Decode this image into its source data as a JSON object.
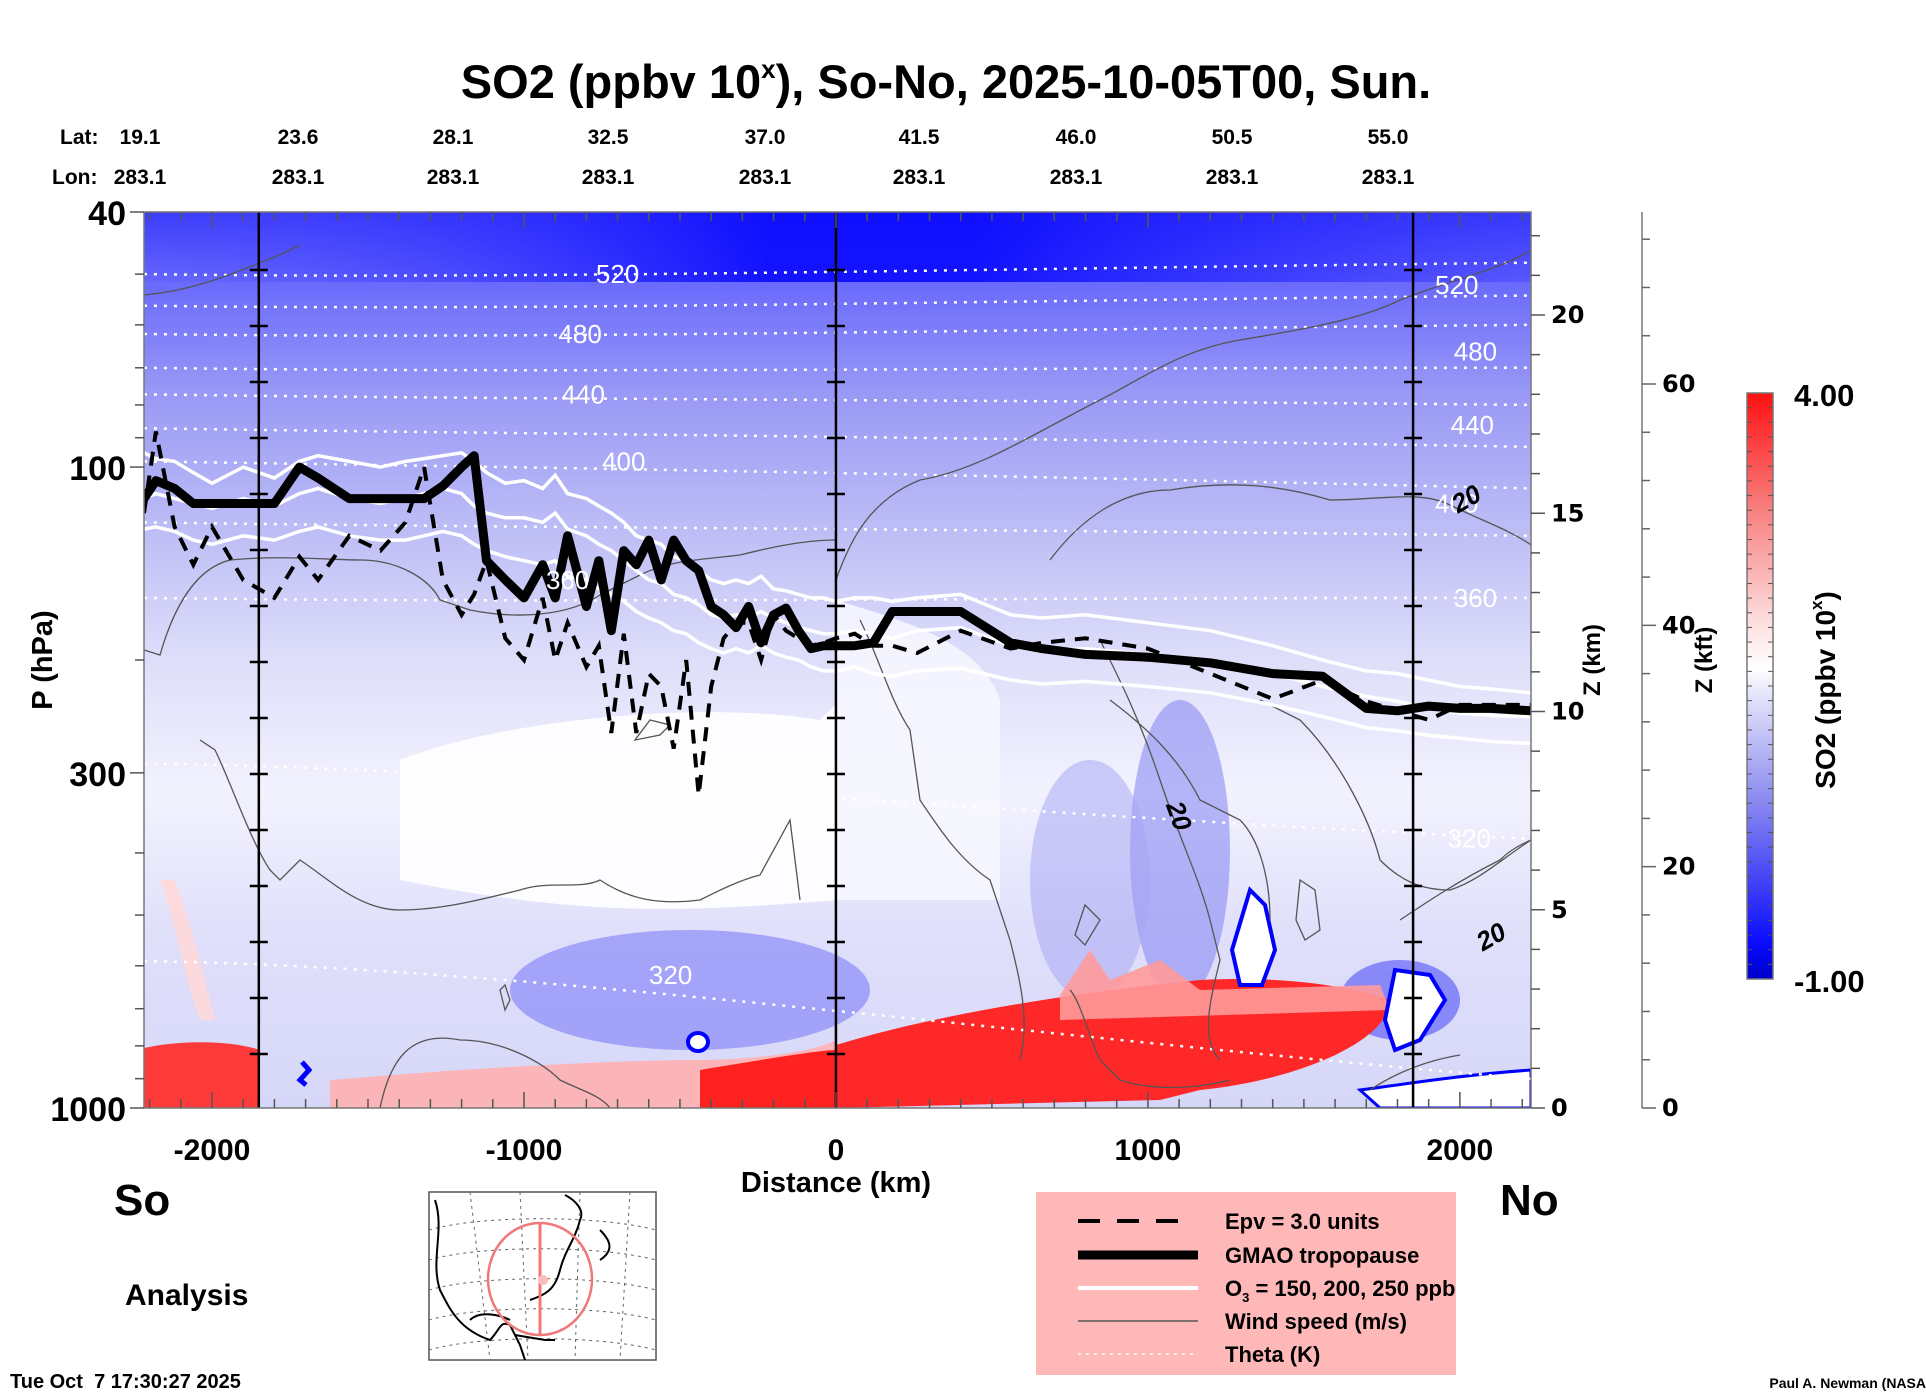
{
  "chart_data": {
    "type": "heatmap",
    "title": "SO2 (ppbv 10",
    "title_superscript": "x",
    "title_suffix": "), So-No, 2025-10-05T00, Sun.",
    "xlabel": "Distance (km)",
    "ylabel": "P (hPa)",
    "xlim": [
      -2218,
      2228
    ],
    "ylim": [
      1000,
      40
    ],
    "y_scale": "log",
    "x_ticks": [
      -2000,
      -1000,
      0,
      1000,
      2000
    ],
    "y_ticks": [
      40,
      100,
      300,
      1000
    ],
    "y_tick_labels": [
      "40",
      "100",
      "300",
      "1000"
    ],
    "right_axis_km": {
      "label": "Z (km)",
      "ticks": [
        0,
        5,
        10,
        15,
        20
      ]
    },
    "right_axis_kft": {
      "label": "Z (kft)",
      "ticks": [
        0,
        20,
        40,
        60
      ]
    },
    "grid": false,
    "lat_label": "Lat:",
    "lon_label": "Lon:",
    "lat_values": [
      "19.1",
      "23.6",
      "28.1",
      "32.5",
      "37.0",
      "41.5",
      "46.0",
      "50.5",
      "55.0"
    ],
    "lon_values": [
      "283.1",
      "283.1",
      "283.1",
      "283.1",
      "283.1",
      "283.1",
      "283.1",
      "283.1",
      "283.1"
    ],
    "lat_lon_distances": [
      -2218,
      -1718,
      -1218,
      -718,
      -218,
      282,
      782,
      1282,
      1782
    ],
    "reference_lines_km": [
      -1850,
      0,
      1850
    ],
    "colorbar": {
      "label": "SO2 (ppbv 10",
      "label_superscript": "x",
      "label_suffix": ")",
      "min": -1.0,
      "max": 4.0,
      "min_label": "-1.00",
      "max_label": "4.00",
      "white_value": 1.5,
      "low_color": "#0000cc",
      "mid_color": "#ffffff",
      "high_color": "#ff0000"
    },
    "theta_labels": [
      {
        "value": "520",
        "x": -700,
        "p": 50
      },
      {
        "value": "480",
        "x": -820,
        "p": 62
      },
      {
        "value": "440",
        "x": -810,
        "p": 77
      },
      {
        "value": "400",
        "x": -680,
        "p": 98
      },
      {
        "value": "360",
        "x": -860,
        "p": 150
      },
      {
        "value": "320",
        "x": -530,
        "p": 620
      },
      {
        "value": "520",
        "x": 1990,
        "p": 52
      },
      {
        "value": "480",
        "x": 2050,
        "p": 66
      },
      {
        "value": "440",
        "x": 2040,
        "p": 86
      },
      {
        "value": "400",
        "x": 1990,
        "p": 114
      },
      {
        "value": "360",
        "x": 2050,
        "p": 160
      },
      {
        "value": "320",
        "x": 2030,
        "p": 380
      }
    ],
    "theta_levels_p_left": [
      50,
      56,
      62,
      70,
      77,
      87,
      98,
      122,
      160,
      290,
      590
    ],
    "theta_levels_p_right": [
      48,
      54,
      60,
      70,
      80,
      93,
      108,
      128,
      160,
      380,
      900
    ],
    "wind_labels": [
      {
        "value": "20",
        "x": 2020,
        "p": 112
      },
      {
        "value": "20",
        "x": 1100,
        "p": 350
      },
      {
        "value": "20",
        "x": 2100,
        "p": 540
      }
    ],
    "tropopause_km": [
      -2218,
      -2180,
      -2120,
      -2060,
      -2000,
      -1900,
      -1800,
      -1720,
      -1660,
      -1560,
      -1460,
      -1380,
      -1320,
      -1260,
      -1200,
      -1160,
      -1120,
      -1060,
      -1000,
      -940,
      -900,
      -860,
      -800,
      -760,
      -720,
      -680,
      -640,
      -600,
      -560,
      -520,
      -480,
      -440,
      -400,
      -360,
      -320,
      -280,
      -240,
      -200,
      -160,
      -120,
      -80,
      -40,
      0,
      60,
      120,
      180,
      260,
      400,
      560,
      660,
      800,
      1000,
      1200,
      1400,
      1560,
      1700,
      1800,
      1900,
      2000,
      2100,
      2228
    ],
    "tropopause_p": [
      112,
      105,
      108,
      114,
      114,
      114,
      114,
      100,
      104,
      112,
      112,
      112,
      112,
      107,
      100,
      96,
      140,
      150,
      160,
      142,
      160,
      128,
      165,
      140,
      180,
      135,
      142,
      130,
      150,
      130,
      140,
      145,
      165,
      170,
      178,
      165,
      188,
      170,
      166,
      180,
      192,
      190,
      190,
      190,
      188,
      168,
      168,
      168,
      188,
      192,
      196,
      198,
      202,
      210,
      212,
      238,
      240,
      236,
      238,
      238,
      240
    ],
    "epv_p": [
      118,
      88,
      124,
      142,
      124,
      150,
      160,
      138,
      150,
      128,
      135,
      122,
      100,
      150,
      170,
      158,
      140,
      185,
      200,
      160,
      200,
      175,
      205,
      190,
      260,
      182,
      260,
      210,
      220,
      275,
      200,
      325,
      220,
      185,
      175,
      175,
      200,
      170,
      180,
      185,
      190,
      188,
      185,
      182,
      190,
      190,
      195,
      180,
      192,
      188,
      185,
      192,
      210,
      230,
      215,
      232,
      240,
      248,
      235,
      235,
      235
    ],
    "o3_150_p": [
      95,
      97,
      98,
      102,
      106,
      100,
      104,
      98,
      96,
      98,
      100,
      98,
      97,
      96,
      95,
      98,
      102,
      106,
      105,
      108,
      103,
      110,
      112,
      115,
      118,
      122,
      128,
      130,
      132,
      138,
      140,
      145,
      150,
      152,
      150,
      152,
      148,
      155,
      156,
      158,
      160,
      160,
      162,
      160,
      160,
      162,
      160,
      158,
      170,
      172,
      170,
      175,
      180,
      190,
      200,
      208,
      210,
      215,
      220,
      222,
      225
    ],
    "o3_200_p": [
      112,
      110,
      112,
      114,
      116,
      112,
      115,
      110,
      108,
      112,
      114,
      112,
      110,
      108,
      110,
      115,
      118,
      120,
      120,
      122,
      118,
      125,
      128,
      132,
      135,
      140,
      145,
      150,
      152,
      158,
      160,
      164,
      170,
      172,
      170,
      172,
      168,
      172,
      175,
      178,
      180,
      182,
      182,
      180,
      182,
      185,
      180,
      178,
      190,
      194,
      192,
      196,
      200,
      210,
      220,
      228,
      232,
      238,
      242,
      244,
      245
    ],
    "o3_250_p": [
      125,
      124,
      126,
      130,
      132,
      128,
      130,
      126,
      124,
      128,
      130,
      130,
      128,
      126,
      128,
      132,
      135,
      138,
      140,
      142,
      140,
      148,
      150,
      155,
      158,
      162,
      168,
      172,
      175,
      180,
      182,
      188,
      192,
      195,
      192,
      195,
      190,
      195,
      198,
      200,
      205,
      208,
      208,
      205,
      210,
      212,
      208,
      206,
      215,
      218,
      216,
      220,
      225,
      235,
      245,
      255,
      258,
      262,
      265,
      268,
      270
    ]
  },
  "header": {
    "title_main": "SO2 (ppbv 10",
    "title_sup": "x",
    "title_rest": "), So-No, 2025-10-05T00, Sun."
  },
  "legend": {
    "items": [
      {
        "label": "Epv = 3.0 units",
        "style": "dashed"
      },
      {
        "label": "GMAO tropopause",
        "style": "thick"
      },
      {
        "label_pre": "O",
        "label_sub": "3",
        "label": " = 150, 200, 250 ppb",
        "style": "white"
      },
      {
        "label": "Wind speed (m/s)",
        "style": "thin"
      },
      {
        "label": "Theta (K)",
        "style": "dotted"
      }
    ],
    "background": "#ffb8b8"
  },
  "footer": {
    "south_label": "So",
    "north_label": "No",
    "analysis_label": "Analysis",
    "timestamp": "Tue Oct  7 17:30:27 2025",
    "credit": "Paul A. Newman (NASA"
  }
}
